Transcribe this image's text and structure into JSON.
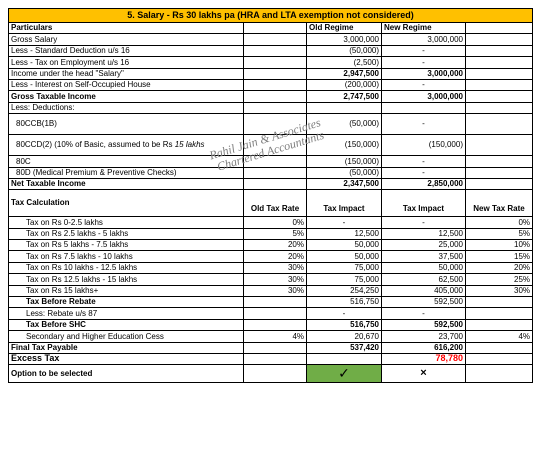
{
  "title": "5. Salary - Rs 30 lakhs pa (HRA and LTA exemption not considered)",
  "watermark": [
    "Rahil Jain & Associates",
    "Chartered Accountants"
  ],
  "header": {
    "particulars": "Particulars",
    "old_regime": "Old Regime",
    "new_regime": "New Regime"
  },
  "rows": [
    {
      "label": "Gross Salary",
      "old": "3,000,000",
      "new": "3,000,000"
    },
    {
      "label": "Less - Standard Deduction u/s 16",
      "old": "(50,000)",
      "new": "-"
    },
    {
      "label": "Less - Tax on Employment u/s 16",
      "old": "(2,500)",
      "new": "-"
    },
    {
      "label": "Income under the head \"Salary\"",
      "old": "2,947,500",
      "new": "3,000,000"
    },
    {
      "label": "Less - Interest on Self-Occupied House",
      "old": "(200,000)",
      "new": "-"
    },
    {
      "label": "Gross Taxable Income",
      "old": "2,747,500",
      "new": "3,000,000"
    },
    {
      "label": "Less: Deductions:"
    },
    {
      "label": "80CCB(1B)",
      "old": "(50,000)",
      "new": "-"
    },
    {
      "label": "80CCD(2) (10% of Basic, assumed to be Rs ",
      "label_italic": "15 lakhs",
      "old": "(150,000)",
      "new": "(150,000)"
    },
    {
      "label": "80C",
      "old": "(150,000)",
      "new": "-"
    },
    {
      "label": "80D (Medical Premium & Preventive Checks)",
      "old": "(50,000)",
      "new": "-"
    },
    {
      "label": "Net Taxable Income",
      "old": "2,347,500",
      "new": "2,850,000"
    }
  ],
  "tax_header": {
    "label": "Tax Calculation",
    "old_rate": "Old Tax Rate",
    "old_impact": "Tax Impact",
    "new_impact": "Tax Impact",
    "new_rate": "New Tax Rate"
  },
  "slabs": [
    {
      "label": "Tax on Rs 0-2.5 lakhs",
      "old_rate": "0%",
      "old": "-",
      "new": "-",
      "new_rate": "0%"
    },
    {
      "label": "Tax on Rs 2.5 lakhs - 5 lakhs",
      "old_rate": "5%",
      "old": "12,500",
      "new": "12,500",
      "new_rate": "5%"
    },
    {
      "label": "Tax on Rs 5 lakhs - 7.5 lakhs",
      "old_rate": "20%",
      "old": "50,000",
      "new": "25,000",
      "new_rate": "10%"
    },
    {
      "label": "Tax on Rs 7.5 lakhs - 10 lakhs",
      "old_rate": "20%",
      "old": "50,000",
      "new": "37,500",
      "new_rate": "15%"
    },
    {
      "label": "Tax on Rs 10 lakhs - 12.5 lakhs",
      "old_rate": "30%",
      "old": "75,000",
      "new": "50,000",
      "new_rate": "20%"
    },
    {
      "label": "Tax on Rs 12.5 lakhs - 15 lakhs",
      "old_rate": "30%",
      "old": "75,000",
      "new": "62,500",
      "new_rate": "25%"
    },
    {
      "label": "Tax on Rs 15 lakhs+",
      "old_rate": "30%",
      "old": "254,250",
      "new": "405,000",
      "new_rate": "30%"
    }
  ],
  "tax_before_rebate": {
    "label": "Tax Before Rebate",
    "old": "516,750",
    "new": "592,500"
  },
  "rebate": {
    "label": "Less: Rebate u/s 87",
    "old": "-",
    "new": "-"
  },
  "tax_before_shc": {
    "label": "Tax Before SHC",
    "old": "516,750",
    "new": "592,500"
  },
  "cess": {
    "label": "Secondary and Higher Education Cess",
    "old_rate": "4%",
    "old": "20,670",
    "new": "23,700",
    "new_rate": "4%"
  },
  "final_tax": {
    "label": "Final Tax Payable",
    "old": "537,420",
    "new": "616,200"
  },
  "excess_tax": {
    "label": "Excess Tax",
    "new": "78,780"
  },
  "option": {
    "label": "Option to be selected",
    "old_mark": "✓",
    "new_mark": "×"
  },
  "colors": {
    "title_bg": "#ffc000",
    "selected_bg": "#70ad47",
    "excess_text": "#ff0000"
  }
}
